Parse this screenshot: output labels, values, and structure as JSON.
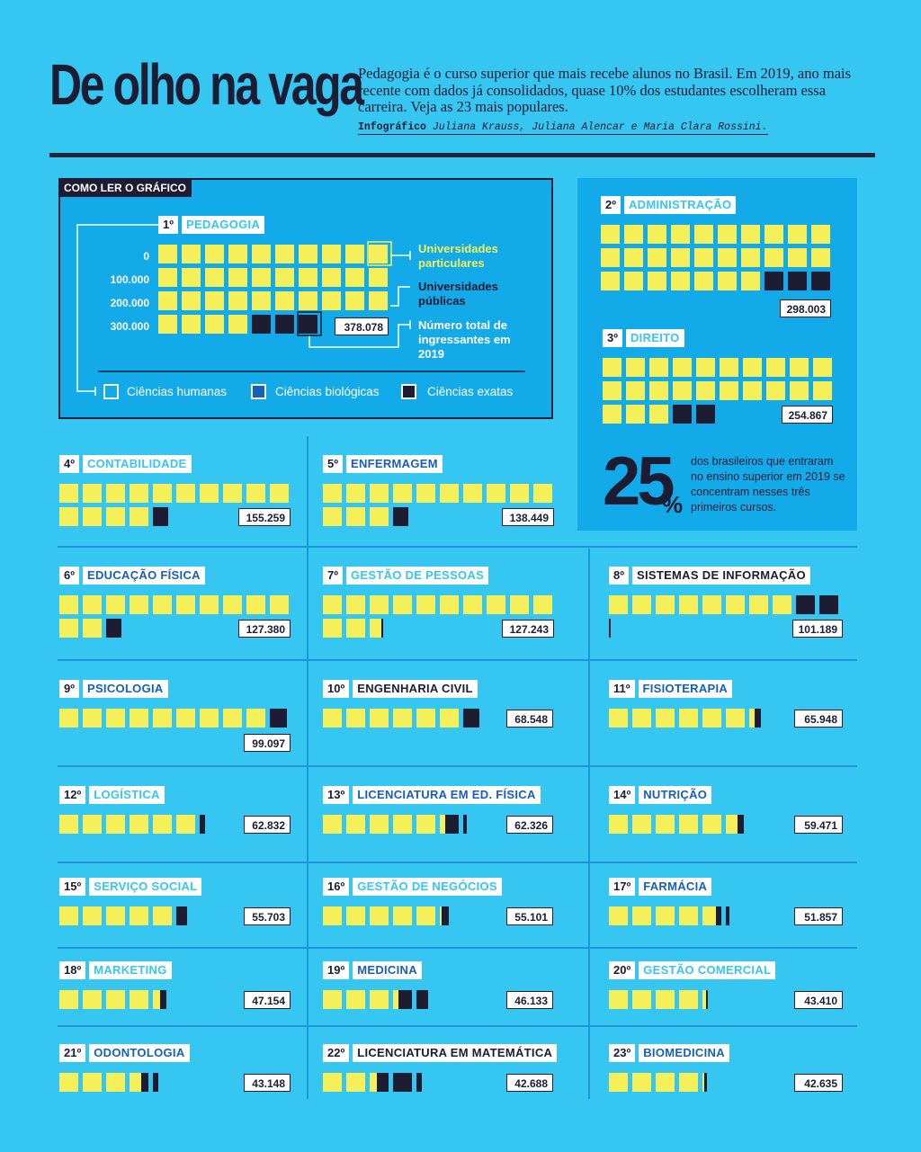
{
  "header": {
    "title": "De olho na vaga",
    "intro": "Pedagogia é o curso superior que mais recebe alunos no Brasil. Em 2019, ano mais recente com dados já consolidados, quase 10% dos estudantes escolheram essa carreira. Veja as 23 mais populares.",
    "credit_label": "Infográfico",
    "credit_names": "Juliana Krauss, Juliana Alencar e Maria Clara Rossini."
  },
  "legend": {
    "tag": "COMO LER O GRÁFICO",
    "ticks": [
      "0",
      "100.000",
      "200.000",
      "300.000"
    ],
    "ann_private": "Universidades particulares",
    "ann_public": "Universidades públicas",
    "ann_total": "Número total de ingressantes em 2019",
    "area_humanas": "Ciências humanas",
    "area_biologicas": "Ciências biológicas",
    "area_exatas": "Ciências exatas"
  },
  "stat": {
    "value": "25",
    "unit": "%",
    "text": "dos brasileiros que entraram no ensino superior em 2019 se concentram nesses três primeiros cursos."
  },
  "colors": {
    "background": "#35c6f2",
    "panel": "#13aaea",
    "private": "#f5f05a",
    "public": "#1c1c33",
    "humanas_label": "#35c6f2",
    "biologicas_label": "#1560b8",
    "exatas_label": "#1c1c33"
  },
  "chart_data": {
    "type": "bar",
    "unit_per_square": 10000,
    "categories": [
      "Pedagogia",
      "Administração",
      "Direito",
      "Contabilidade",
      "Enfermagem",
      "Educação Física",
      "Gestão de Pessoas",
      "Sistemas de Informação",
      "Psicologia",
      "Engenharia Civil",
      "Fisioterapia",
      "Logística",
      "Licenciatura em Ed. Física",
      "Nutrição",
      "Serviço Social",
      "Gestão de Negócios",
      "Farmácia",
      "Marketing",
      "Medicina",
      "Gestão Comercial",
      "Odontologia",
      "Licenciatura em Matemática",
      "Biomedicina"
    ],
    "courses": [
      {
        "rank": "1º",
        "name": "PEDAGOGIA",
        "area": "humanas",
        "total": "378.078",
        "total_value": 378078,
        "private_squares": 34,
        "public_squares": 3
      },
      {
        "rank": "2º",
        "name": "ADMINISTRAÇÃO",
        "area": "humanas",
        "total": "298.003",
        "total_value": 298003,
        "private_squares": 27,
        "public_squares": 3
      },
      {
        "rank": "3º",
        "name": "DIREITO",
        "area": "humanas",
        "total": "254.867",
        "total_value": 254867,
        "private_squares": 23,
        "public_squares": 2
      },
      {
        "rank": "4º",
        "name": "CONTABILIDADE",
        "area": "humanas",
        "total": "155.259",
        "total_value": 155259,
        "private_squares": 14,
        "public_squares": 0.8
      },
      {
        "rank": "5º",
        "name": "ENFERMAGEM",
        "area": "biologicas",
        "total": "138.449",
        "total_value": 138449,
        "private_squares": 13,
        "public_squares": 0.8
      },
      {
        "rank": "6º",
        "name": "EDUCAÇÃO FÍSICA",
        "area": "biologicas",
        "total": "127.380",
        "total_value": 127380,
        "private_squares": 12,
        "public_squares": 0.8
      },
      {
        "rank": "7º",
        "name": "GESTÃO DE PESSOAS",
        "area": "humanas",
        "total": "127.243",
        "total_value": 127243,
        "private_squares": 12.6,
        "public_squares": 0.1
      },
      {
        "rank": "8º",
        "name": "SISTEMAS DE INFORMAÇÃO",
        "area": "exatas",
        "total": "101.189",
        "total_value": 101189,
        "private_squares": 8,
        "public_squares": 2.1
      },
      {
        "rank": "9º",
        "name": "PSICOLOGIA",
        "area": "biologicas",
        "total": "99.097",
        "total_value": 99097,
        "private_squares": 9,
        "public_squares": 0.9
      },
      {
        "rank": "10º",
        "name": "ENGENHARIA CIVIL",
        "area": "exatas",
        "total": "68.548",
        "total_value": 68548,
        "private_squares": 6,
        "public_squares": 0.85
      },
      {
        "rank": "11º",
        "name": "FISIOTERAPIA",
        "area": "biologicas",
        "total": "65.948",
        "total_value": 65948,
        "private_squares": 6.3,
        "public_squares": 0.3
      },
      {
        "rank": "12º",
        "name": "LOGÍSTICA",
        "area": "humanas",
        "total": "62.832",
        "total_value": 62832,
        "private_squares": 6,
        "public_squares": 0.3
      },
      {
        "rank": "13º",
        "name": "LICENCIATURA EM ED. FÍSICA",
        "area": "biologicas",
        "total": "62.326",
        "total_value": 62326,
        "private_squares": 5.3,
        "public_squares": 0.9
      },
      {
        "rank": "14º",
        "name": "NUTRIÇÃO",
        "area": "biologicas",
        "total": "59.471",
        "total_value": 59471,
        "private_squares": 5.6,
        "public_squares": 0.35
      },
      {
        "rank": "15º",
        "name": "SERVIÇO SOCIAL",
        "area": "humanas",
        "total": "55.703",
        "total_value": 55703,
        "private_squares": 5,
        "public_squares": 0.55
      },
      {
        "rank": "16º",
        "name": "GESTÃO DE NEGÓCIOS",
        "area": "humanas",
        "total": "55.101",
        "total_value": 55101,
        "private_squares": 5.1,
        "public_squares": 0.4
      },
      {
        "rank": "17º",
        "name": "FARMÁCIA",
        "area": "biologicas",
        "total": "51.857",
        "total_value": 51857,
        "private_squares": 4.7,
        "public_squares": 0.5
      },
      {
        "rank": "18º",
        "name": "MARKETING",
        "area": "humanas",
        "total": "47.154",
        "total_value": 47154,
        "private_squares": 4.4,
        "public_squares": 0.3
      },
      {
        "rank": "19º",
        "name": "MEDICINA",
        "area": "biologicas",
        "total": "46.133",
        "total_value": 46133,
        "private_squares": 3.3,
        "public_squares": 1.3
      },
      {
        "rank": "20º",
        "name": "GESTÃO COMERCIAL",
        "area": "humanas",
        "total": "43.410",
        "total_value": 43410,
        "private_squares": 4.2,
        "public_squares": 0.1
      },
      {
        "rank": "21º",
        "name": "ODONTOLOGIA",
        "area": "biologicas",
        "total": "43.148",
        "total_value": 43148,
        "private_squares": 3.6,
        "public_squares": 0.7
      },
      {
        "rank": "22º",
        "name": "LICENCIATURA EM MATEMÁTICA",
        "area": "exatas",
        "total": "42.688",
        "total_value": 42688,
        "private_squares": 2.4,
        "public_squares": 1.9
      },
      {
        "rank": "23º",
        "name": "BIOMEDICINA",
        "area": "biologicas",
        "total": "42.635",
        "total_value": 42635,
        "private_squares": 4.1,
        "public_squares": 0.15
      }
    ]
  }
}
